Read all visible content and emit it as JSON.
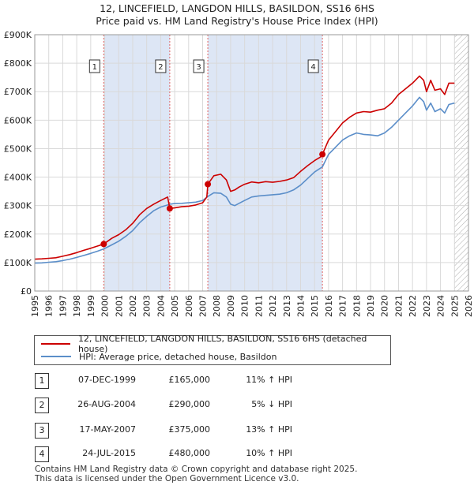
{
  "title": {
    "line1": "12, LINCEFIELD, LANGDON HILLS, BASILDON, SS16 6HS",
    "line2": "Price paid vs. HM Land Registry's House Price Index (HPI)"
  },
  "colors": {
    "property": "#cc0000",
    "hpi": "#5b8ec9",
    "shade": "#dde6f5",
    "marker_line": "#e06060",
    "hatch": "#aaaaaa"
  },
  "chart_data": {
    "type": "line",
    "title": "12, LINCEFIELD, LANGDON HILLS, BASILDON, SS16 6HS — Price paid vs. HM Land Registry's House Price Index (HPI)",
    "xlabel": "",
    "ylabel": "",
    "xlim": [
      1995,
      2026
    ],
    "ylim": [
      0,
      900000
    ],
    "grid": true,
    "x_ticks": [
      1995,
      1996,
      1997,
      1998,
      1999,
      2000,
      2001,
      2002,
      2003,
      2004,
      2005,
      2006,
      2007,
      2008,
      2009,
      2010,
      2011,
      2012,
      2013,
      2014,
      2015,
      2016,
      2017,
      2018,
      2019,
      2020,
      2021,
      2022,
      2023,
      2024,
      2025,
      2026
    ],
    "y_ticks": [
      {
        "value": 0,
        "label": "£0"
      },
      {
        "value": 100000,
        "label": "£100K"
      },
      {
        "value": 200000,
        "label": "£200K"
      },
      {
        "value": 300000,
        "label": "£300K"
      },
      {
        "value": 400000,
        "label": "£400K"
      },
      {
        "value": 500000,
        "label": "£500K"
      },
      {
        "value": 600000,
        "label": "£600K"
      },
      {
        "value": 700000,
        "label": "£700K"
      },
      {
        "value": 800000,
        "label": "£800K"
      },
      {
        "value": 900000,
        "label": "£900K"
      }
    ],
    "series": [
      {
        "name": "12, LINCEFIELD, LANGDON HILLS, BASILDON, SS16 6HS (detached house)",
        "color": "#cc0000",
        "x": [
          1995.0,
          1995.5,
          1996.0,
          1996.5,
          1997.0,
          1997.5,
          1998.0,
          1998.5,
          1999.0,
          1999.5,
          1999.93,
          2000.5,
          2001.0,
          2001.5,
          2002.0,
          2002.5,
          2003.0,
          2003.5,
          2004.0,
          2004.5,
          2004.65,
          2005.0,
          2005.5,
          2006.0,
          2006.5,
          2007.0,
          2007.3,
          2007.37,
          2007.8,
          2008.3,
          2008.7,
          2009.0,
          2009.3,
          2009.6,
          2010.0,
          2010.5,
          2011.0,
          2011.5,
          2012.0,
          2012.5,
          2013.0,
          2013.5,
          2014.0,
          2014.5,
          2015.0,
          2015.4,
          2015.56,
          2016.0,
          2016.5,
          2017.0,
          2017.5,
          2018.0,
          2018.5,
          2019.0,
          2019.5,
          2020.0,
          2020.5,
          2021.0,
          2021.5,
          2022.0,
          2022.5,
          2022.8,
          2023.0,
          2023.3,
          2023.6,
          2024.0,
          2024.3,
          2024.6,
          2025.0
        ],
        "values": [
          112000,
          113000,
          115000,
          117000,
          122000,
          128000,
          135000,
          143000,
          150000,
          158000,
          165000,
          185000,
          198000,
          215000,
          238000,
          268000,
          290000,
          305000,
          318000,
          330000,
          290000,
          292000,
          296000,
          298000,
          302000,
          310000,
          330000,
          375000,
          405000,
          410000,
          390000,
          350000,
          355000,
          365000,
          375000,
          383000,
          380000,
          384000,
          382000,
          385000,
          390000,
          398000,
          420000,
          440000,
          458000,
          470000,
          480000,
          530000,
          560000,
          590000,
          610000,
          625000,
          630000,
          628000,
          635000,
          640000,
          660000,
          690000,
          710000,
          730000,
          755000,
          740000,
          700000,
          740000,
          705000,
          710000,
          690000,
          730000,
          730000
        ]
      },
      {
        "name": "HPI: Average price, detached house, Basildon",
        "color": "#5b8ec9",
        "x": [
          1995.0,
          1995.5,
          1996.0,
          1996.5,
          1997.0,
          1997.5,
          1998.0,
          1998.5,
          1999.0,
          1999.5,
          1999.93,
          2000.5,
          2001.0,
          2001.5,
          2002.0,
          2002.5,
          2003.0,
          2003.5,
          2004.0,
          2004.5,
          2004.65,
          2005.0,
          2005.5,
          2006.0,
          2006.5,
          2007.0,
          2007.37,
          2007.8,
          2008.3,
          2008.7,
          2009.0,
          2009.3,
          2009.6,
          2010.0,
          2010.5,
          2011.0,
          2011.5,
          2012.0,
          2012.5,
          2013.0,
          2013.5,
          2014.0,
          2014.5,
          2015.0,
          2015.56,
          2016.0,
          2016.5,
          2017.0,
          2017.5,
          2018.0,
          2018.5,
          2019.0,
          2019.5,
          2020.0,
          2020.5,
          2021.0,
          2021.5,
          2022.0,
          2022.5,
          2022.8,
          2023.0,
          2023.3,
          2023.6,
          2024.0,
          2024.3,
          2024.6,
          2025.0
        ],
        "values": [
          98000,
          99000,
          101000,
          103000,
          107000,
          112000,
          118000,
          125000,
          132000,
          140000,
          148000,
          162000,
          175000,
          192000,
          212000,
          240000,
          262000,
          282000,
          295000,
          302000,
          305000,
          307000,
          308000,
          310000,
          312000,
          318000,
          332000,
          345000,
          343000,
          330000,
          305000,
          300000,
          308000,
          318000,
          330000,
          334000,
          336000,
          338000,
          340000,
          345000,
          355000,
          372000,
          395000,
          418000,
          436000,
          480000,
          505000,
          530000,
          545000,
          555000,
          550000,
          548000,
          545000,
          555000,
          575000,
          600000,
          625000,
          650000,
          680000,
          665000,
          635000,
          660000,
          630000,
          640000,
          625000,
          655000,
          660000
        ]
      }
    ],
    "sales": [
      {
        "label": "1",
        "x": 1999.93,
        "value": 165000
      },
      {
        "label": "2",
        "x": 2004.65,
        "value": 290000
      },
      {
        "label": "3",
        "x": 2007.37,
        "value": 375000
      },
      {
        "label": "4",
        "x": 2015.56,
        "value": 480000
      }
    ],
    "shaded_ranges": [
      [
        1999.93,
        2004.65
      ],
      [
        2007.37,
        2015.56
      ]
    ],
    "hatched_from": 2025.0
  },
  "legend": {
    "property_label": "12, LINCEFIELD, LANGDON HILLS, BASILDON, SS16 6HS (detached house)",
    "hpi_label": "HPI: Average price, detached house, Basildon"
  },
  "transactions": [
    {
      "num": "1",
      "date": "07-DEC-1999",
      "price": "£165,000",
      "hpi": "11% ↑ HPI"
    },
    {
      "num": "2",
      "date": "26-AUG-2004",
      "price": "£290,000",
      "hpi": "5% ↓ HPI"
    },
    {
      "num": "3",
      "date": "17-MAY-2007",
      "price": "£375,000",
      "hpi": "13% ↑ HPI"
    },
    {
      "num": "4",
      "date": "24-JUL-2015",
      "price": "£480,000",
      "hpi": "10% ↑ HPI"
    }
  ],
  "footer": {
    "line1": "Contains HM Land Registry data © Crown copyright and database right 2025.",
    "line2": "This data is licensed under the Open Government Licence v3.0."
  }
}
